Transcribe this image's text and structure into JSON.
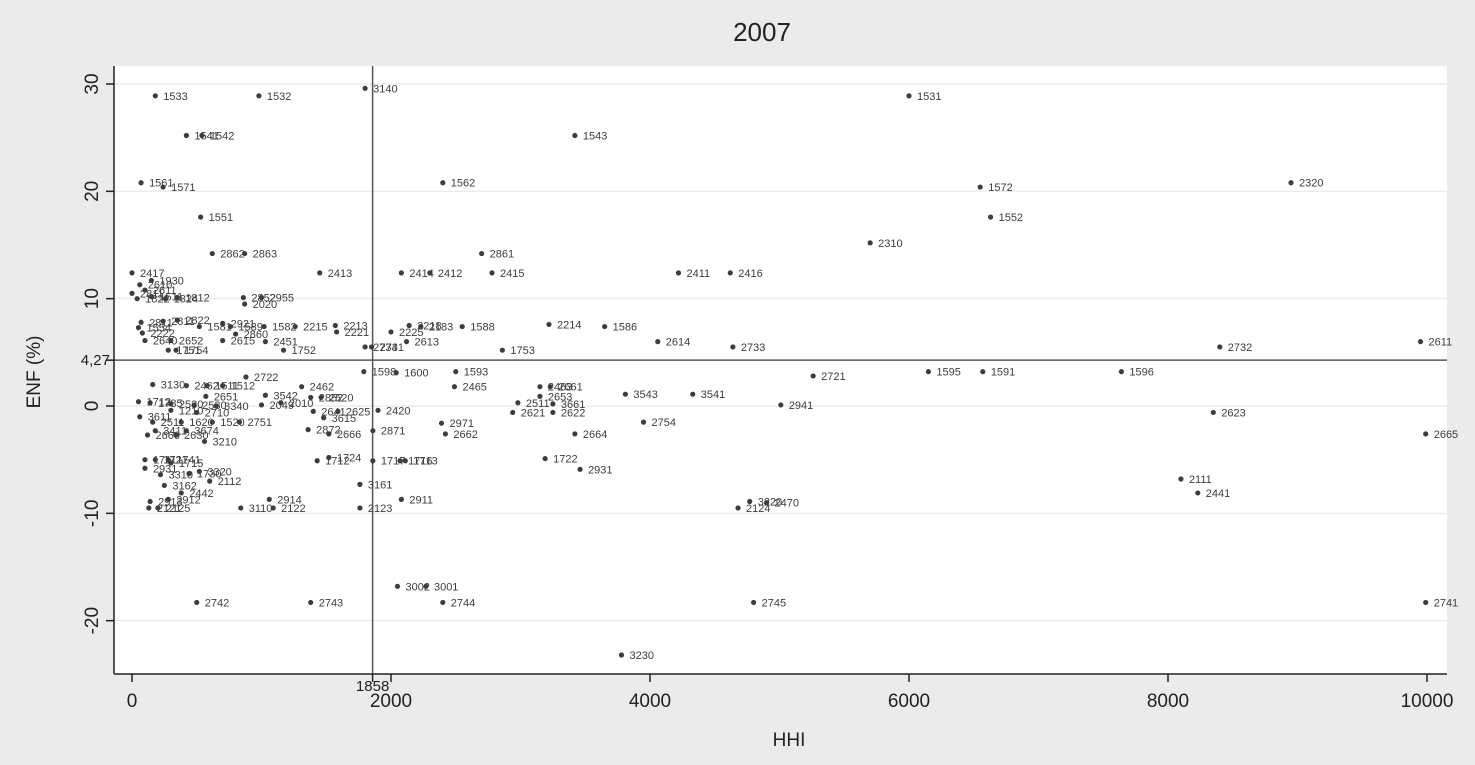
{
  "chart_data": {
    "type": "scatter",
    "title": "2007",
    "xlabel": "HHI",
    "ylabel": "ENF (%)",
    "xlim": [
      -150,
      10150
    ],
    "ylim": [
      -25,
      32.5
    ],
    "xticks": [
      0,
      2000,
      4000,
      6000,
      8000,
      10000
    ],
    "yticks": [
      -20,
      -10,
      0,
      10,
      20,
      30
    ],
    "grid": true,
    "ref_x": {
      "value": 1858,
      "label": "1858"
    },
    "ref_y": {
      "value": 4.27,
      "label": "4,27"
    },
    "points": [
      {
        "x": 180,
        "y": 28.9,
        "label": "1533"
      },
      {
        "x": 980,
        "y": 28.9,
        "label": "1532"
      },
      {
        "x": 1800,
        "y": 29.6,
        "label": "3140"
      },
      {
        "x": 6000,
        "y": 28.9,
        "label": "1531"
      },
      {
        "x": 420,
        "y": 25.2,
        "label": "1541"
      },
      {
        "x": 540,
        "y": 25.2,
        "label": "1542"
      },
      {
        "x": 3420,
        "y": 25.2,
        "label": "1543"
      },
      {
        "x": 70,
        "y": 20.8,
        "label": "1561"
      },
      {
        "x": 240,
        "y": 20.4,
        "label": "1571"
      },
      {
        "x": 2400,
        "y": 20.8,
        "label": "1562"
      },
      {
        "x": 6550,
        "y": 20.4,
        "label": "1572"
      },
      {
        "x": 8950,
        "y": 20.8,
        "label": "2320"
      },
      {
        "x": 530,
        "y": 17.6,
        "label": "1551"
      },
      {
        "x": 6630,
        "y": 17.6,
        "label": "1552"
      },
      {
        "x": 5700,
        "y": 15.2,
        "label": "2310"
      },
      {
        "x": 620,
        "y": 14.2,
        "label": "2862"
      },
      {
        "x": 870,
        "y": 14.2,
        "label": "2863"
      },
      {
        "x": 2700,
        "y": 14.2,
        "label": "2861"
      },
      {
        "x": 0,
        "y": 12.4,
        "label": "2417"
      },
      {
        "x": 1450,
        "y": 12.4,
        "label": "2413"
      },
      {
        "x": 2080,
        "y": 12.4,
        "label": "2414"
      },
      {
        "x": 2300,
        "y": 12.4,
        "label": "2412"
      },
      {
        "x": 2780,
        "y": 12.4,
        "label": "2415"
      },
      {
        "x": 4220,
        "y": 12.4,
        "label": "2411"
      },
      {
        "x": 4620,
        "y": 12.4,
        "label": "2416"
      },
      {
        "x": 150,
        "y": 11.7,
        "label": "1930"
      },
      {
        "x": 60,
        "y": 11.3,
        "label": "2610"
      },
      {
        "x": 100,
        "y": 10.8,
        "label": "2611"
      },
      {
        "x": 0,
        "y": 10.5,
        "label": "2811"
      },
      {
        "x": 150,
        "y": 10.2,
        "label": "1511"
      },
      {
        "x": 40,
        "y": 10.0,
        "label": "1822"
      },
      {
        "x": 260,
        "y": 10.0,
        "label": "1824"
      },
      {
        "x": 350,
        "y": 10.1,
        "label": "1812"
      },
      {
        "x": 860,
        "y": 10.1,
        "label": "2852"
      },
      {
        "x": 1000,
        "y": 10.1,
        "label": "2955"
      },
      {
        "x": 870,
        "y": 9.5,
        "label": "2020"
      },
      {
        "x": 70,
        "y": 7.8,
        "label": "2811"
      },
      {
        "x": 240,
        "y": 7.9,
        "label": "2811"
      },
      {
        "x": 350,
        "y": 8.0,
        "label": "2822"
      },
      {
        "x": 700,
        "y": 7.7,
        "label": "2921"
      },
      {
        "x": 50,
        "y": 7.3,
        "label": "1554"
      },
      {
        "x": 520,
        "y": 7.4,
        "label": "1581"
      },
      {
        "x": 760,
        "y": 7.4,
        "label": "1589"
      },
      {
        "x": 1020,
        "y": 7.4,
        "label": "1582"
      },
      {
        "x": 1260,
        "y": 7.4,
        "label": "2215"
      },
      {
        "x": 1570,
        "y": 7.5,
        "label": "2213"
      },
      {
        "x": 2140,
        "y": 7.5,
        "label": "2218"
      },
      {
        "x": 2230,
        "y": 7.4,
        "label": "2183"
      },
      {
        "x": 2550,
        "y": 7.4,
        "label": "1588"
      },
      {
        "x": 3220,
        "y": 7.6,
        "label": "2214"
      },
      {
        "x": 3650,
        "y": 7.4,
        "label": "1586"
      },
      {
        "x": 80,
        "y": 6.8,
        "label": "2222"
      },
      {
        "x": 1580,
        "y": 6.9,
        "label": "2221"
      },
      {
        "x": 2000,
        "y": 6.9,
        "label": "2225"
      },
      {
        "x": 800,
        "y": 6.7,
        "label": "2860"
      },
      {
        "x": 100,
        "y": 6.1,
        "label": "2640"
      },
      {
        "x": 300,
        "y": 6.1,
        "label": "2652"
      },
      {
        "x": 700,
        "y": 6.1,
        "label": "2615"
      },
      {
        "x": 1030,
        "y": 6.0,
        "label": "2451"
      },
      {
        "x": 2120,
        "y": 6.0,
        "label": "2613"
      },
      {
        "x": 4060,
        "y": 6.0,
        "label": "2614"
      },
      {
        "x": 9950,
        "y": 6.0,
        "label": "2611"
      },
      {
        "x": 280,
        "y": 5.2,
        "label": "1751"
      },
      {
        "x": 340,
        "y": 5.2,
        "label": "1754"
      },
      {
        "x": 1170,
        "y": 5.2,
        "label": "1752"
      },
      {
        "x": 1800,
        "y": 5.5,
        "label": "2734"
      },
      {
        "x": 1850,
        "y": 5.5,
        "label": "2731"
      },
      {
        "x": 2860,
        "y": 5.2,
        "label": "1753"
      },
      {
        "x": 4640,
        "y": 5.5,
        "label": "2733"
      },
      {
        "x": 8400,
        "y": 5.5,
        "label": "2732"
      },
      {
        "x": 1790,
        "y": 3.2,
        "label": "1598"
      },
      {
        "x": 2040,
        "y": 3.1,
        "label": "1600"
      },
      {
        "x": 2500,
        "y": 3.2,
        "label": "1593"
      },
      {
        "x": 6150,
        "y": 3.2,
        "label": "1595"
      },
      {
        "x": 6570,
        "y": 3.2,
        "label": "1591"
      },
      {
        "x": 7640,
        "y": 3.2,
        "label": "1596"
      },
      {
        "x": 5260,
        "y": 2.8,
        "label": "2721"
      },
      {
        "x": 880,
        "y": 2.7,
        "label": "2722"
      },
      {
        "x": 160,
        "y": 2.0,
        "label": "3130"
      },
      {
        "x": 420,
        "y": 1.9,
        "label": "2462"
      },
      {
        "x": 580,
        "y": 1.9,
        "label": "1511"
      },
      {
        "x": 700,
        "y": 1.9,
        "label": "1512"
      },
      {
        "x": 1310,
        "y": 1.8,
        "label": "2462"
      },
      {
        "x": 2490,
        "y": 1.8,
        "label": "2465"
      },
      {
        "x": 3150,
        "y": 1.8,
        "label": "2463"
      },
      {
        "x": 3230,
        "y": 1.8,
        "label": "2661"
      },
      {
        "x": 570,
        "y": 0.9,
        "label": "2651"
      },
      {
        "x": 1030,
        "y": 1.0,
        "label": "3542"
      },
      {
        "x": 1380,
        "y": 0.8,
        "label": "2852"
      },
      {
        "x": 1460,
        "y": 0.8,
        "label": "2520"
      },
      {
        "x": 3150,
        "y": 0.9,
        "label": "2653"
      },
      {
        "x": 3810,
        "y": 1.1,
        "label": "3543"
      },
      {
        "x": 4330,
        "y": 1.1,
        "label": "3541"
      },
      {
        "x": 50,
        "y": 0.4,
        "label": "1712"
      },
      {
        "x": 140,
        "y": 0.3,
        "label": "1785"
      },
      {
        "x": 300,
        "y": 0.2,
        "label": "2530"
      },
      {
        "x": 480,
        "y": 0.1,
        "label": "2530"
      },
      {
        "x": 650,
        "y": 0.0,
        "label": "3340"
      },
      {
        "x": 1000,
        "y": 0.1,
        "label": "2049"
      },
      {
        "x": 1150,
        "y": 0.3,
        "label": "2010"
      },
      {
        "x": 2980,
        "y": 0.3,
        "label": "2511"
      },
      {
        "x": 3250,
        "y": 0.2,
        "label": "3661"
      },
      {
        "x": 5010,
        "y": 0.1,
        "label": "2941"
      },
      {
        "x": 1400,
        "y": -0.5,
        "label": "2641"
      },
      {
        "x": 1590,
        "y": -0.5,
        "label": "2625"
      },
      {
        "x": 1900,
        "y": -0.4,
        "label": "2420"
      },
      {
        "x": 2940,
        "y": -0.6,
        "label": "2621"
      },
      {
        "x": 3250,
        "y": -0.6,
        "label": "2622"
      },
      {
        "x": 8350,
        "y": -0.6,
        "label": "2623"
      },
      {
        "x": 60,
        "y": -1.0,
        "label": "3611"
      },
      {
        "x": 300,
        "y": -0.4,
        "label": "1210"
      },
      {
        "x": 500,
        "y": -0.6,
        "label": "2710"
      },
      {
        "x": 1480,
        "y": -1.1,
        "label": "3615"
      },
      {
        "x": 160,
        "y": -1.5,
        "label": "2511"
      },
      {
        "x": 380,
        "y": -1.5,
        "label": "1620"
      },
      {
        "x": 620,
        "y": -1.5,
        "label": "1520"
      },
      {
        "x": 830,
        "y": -1.5,
        "label": "2751"
      },
      {
        "x": 2390,
        "y": -1.6,
        "label": "2971"
      },
      {
        "x": 3950,
        "y": -1.5,
        "label": "2754"
      },
      {
        "x": 180,
        "y": -2.3,
        "label": "3411"
      },
      {
        "x": 420,
        "y": -2.3,
        "label": "3674"
      },
      {
        "x": 1360,
        "y": -2.2,
        "label": "2872"
      },
      {
        "x": 1860,
        "y": -2.3,
        "label": "2871"
      },
      {
        "x": 120,
        "y": -2.7,
        "label": "2660"
      },
      {
        "x": 340,
        "y": -2.7,
        "label": "2630"
      },
      {
        "x": 1520,
        "y": -2.6,
        "label": "2666"
      },
      {
        "x": 2420,
        "y": -2.6,
        "label": "2662"
      },
      {
        "x": 3420,
        "y": -2.6,
        "label": "2664"
      },
      {
        "x": 9990,
        "y": -2.6,
        "label": "2665"
      },
      {
        "x": 560,
        "y": -3.3,
        "label": "3210"
      },
      {
        "x": 100,
        "y": -5.0,
        "label": "1711"
      },
      {
        "x": 180,
        "y": -5.0,
        "label": "1721"
      },
      {
        "x": 280,
        "y": -5.0,
        "label": "1741"
      },
      {
        "x": 300,
        "y": -5.3,
        "label": "1715"
      },
      {
        "x": 1430,
        "y": -5.1,
        "label": "1712"
      },
      {
        "x": 1520,
        "y": -4.8,
        "label": "1724"
      },
      {
        "x": 1860,
        "y": -5.1,
        "label": "1717"
      },
      {
        "x": 2070,
        "y": -5.1,
        "label": "1716"
      },
      {
        "x": 2110,
        "y": -5.1,
        "label": "1713"
      },
      {
        "x": 3190,
        "y": -4.9,
        "label": "1722"
      },
      {
        "x": 100,
        "y": -5.8,
        "label": "2931"
      },
      {
        "x": 220,
        "y": -6.4,
        "label": "3310"
      },
      {
        "x": 440,
        "y": -6.3,
        "label": "1730"
      },
      {
        "x": 520,
        "y": -6.1,
        "label": "3320"
      },
      {
        "x": 3460,
        "y": -5.9,
        "label": "2931"
      },
      {
        "x": 600,
        "y": -7.0,
        "label": "2112"
      },
      {
        "x": 8100,
        "y": -6.8,
        "label": "2111"
      },
      {
        "x": 250,
        "y": -7.4,
        "label": "3162"
      },
      {
        "x": 1760,
        "y": -7.3,
        "label": "3161"
      },
      {
        "x": 380,
        "y": -8.1,
        "label": "2442"
      },
      {
        "x": 8230,
        "y": -8.1,
        "label": "2441"
      },
      {
        "x": 140,
        "y": -8.9,
        "label": "2913"
      },
      {
        "x": 280,
        "y": -8.7,
        "label": "2912"
      },
      {
        "x": 1060,
        "y": -8.7,
        "label": "2914"
      },
      {
        "x": 2080,
        "y": -8.7,
        "label": "2911"
      },
      {
        "x": 4770,
        "y": -8.9,
        "label": "3220"
      },
      {
        "x": 4900,
        "y": -9.0,
        "label": "2470"
      },
      {
        "x": 130,
        "y": -9.5,
        "label": "2121"
      },
      {
        "x": 200,
        "y": -9.5,
        "label": "2125"
      },
      {
        "x": 840,
        "y": -9.5,
        "label": "3110"
      },
      {
        "x": 1090,
        "y": -9.5,
        "label": "2122"
      },
      {
        "x": 1760,
        "y": -9.5,
        "label": "2123"
      },
      {
        "x": 4680,
        "y": -9.5,
        "label": "2124"
      },
      {
        "x": 2050,
        "y": -16.8,
        "label": "3002"
      },
      {
        "x": 2270,
        "y": -16.8,
        "label": "3001"
      },
      {
        "x": 500,
        "y": -18.3,
        "label": "2742"
      },
      {
        "x": 1380,
        "y": -18.3,
        "label": "2743"
      },
      {
        "x": 2400,
        "y": -18.3,
        "label": "2744"
      },
      {
        "x": 4800,
        "y": -18.3,
        "label": "2745"
      },
      {
        "x": 9990,
        "y": -18.3,
        "label": "2741"
      },
      {
        "x": 3780,
        "y": -23.2,
        "label": "3230"
      }
    ]
  }
}
